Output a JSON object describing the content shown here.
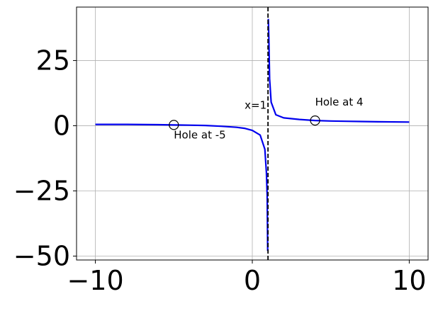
{
  "chart_data": {
    "type": "line",
    "title": "",
    "xlabel": "",
    "ylabel": "",
    "xlim": [
      -11.2,
      11.2
    ],
    "ylim": [
      -51.5,
      45.5
    ],
    "xticks": [
      -10,
      0,
      10
    ],
    "xtick_labels": [
      "−10",
      "0",
      "10"
    ],
    "yticks": [
      -50,
      -25,
      0,
      25
    ],
    "ytick_labels": [
      "−50",
      "−25",
      "0",
      "25"
    ],
    "grid": true,
    "series": [
      {
        "color": "#0000ee",
        "x": [
          -10,
          -8,
          -6,
          -5,
          -4,
          -3,
          -2,
          -1,
          -0.5,
          0,
          0.5,
          0.8,
          0.9,
          0.95,
          0.98,
          1.02,
          1.05,
          1.1,
          1.2,
          1.5,
          2,
          3,
          4,
          5,
          6,
          8,
          10
        ],
        "y": [
          0.5,
          0.5,
          0.4,
          0.3,
          0.2,
          0.1,
          -0.2,
          -0.6,
          -1.0,
          -1.8,
          -3.6,
          -9.0,
          -18.0,
          -27.0,
          -48.0,
          41.0,
          34.0,
          18.0,
          9.0,
          4.2,
          3.0,
          2.4,
          2.0,
          1.8,
          1.7,
          1.5,
          1.4
        ]
      }
    ],
    "asymptote": {
      "x": 1,
      "label": "x=1",
      "color": "#000000",
      "style": "dashed"
    },
    "holes": [
      {
        "x": -5,
        "y": 0.3,
        "label": "Hole at -5"
      },
      {
        "x": 4,
        "y": 2.0,
        "label": "Hole at 4"
      }
    ]
  }
}
